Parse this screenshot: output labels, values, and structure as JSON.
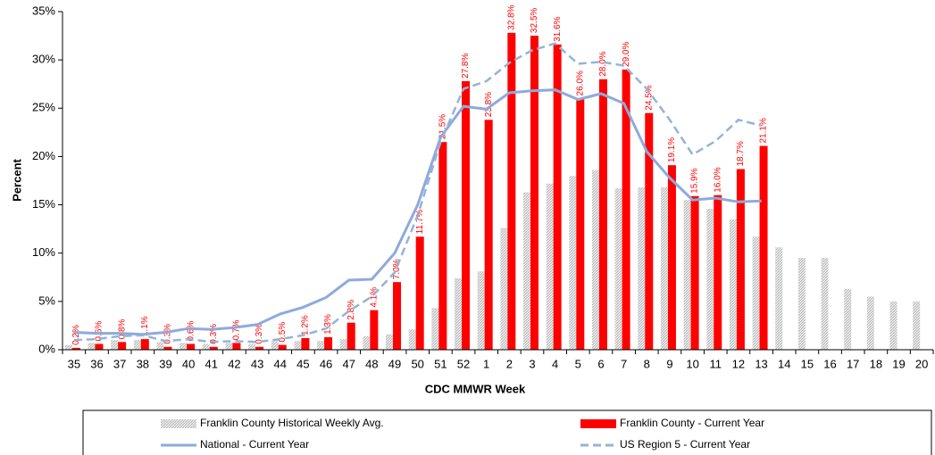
{
  "chart_data": {
    "type": "bar",
    "x_label": "CDC MMWR Week",
    "y_label": "Percent",
    "categories": [
      "35",
      "36",
      "37",
      "38",
      "39",
      "40",
      "41",
      "42",
      "43",
      "44",
      "45",
      "46",
      "47",
      "48",
      "49",
      "50",
      "51",
      "52",
      "1",
      "2",
      "3",
      "4",
      "5",
      "6",
      "7",
      "8",
      "9",
      "10",
      "11",
      "12",
      "13",
      "14",
      "15",
      "16",
      "17",
      "18",
      "19",
      "20"
    ],
    "ylim": [
      0,
      35
    ],
    "yticks": [
      {
        "value": 0,
        "label": "0%"
      },
      {
        "value": 5,
        "label": "5%"
      },
      {
        "value": 10,
        "label": "10%"
      },
      {
        "value": 15,
        "label": "15%"
      },
      {
        "value": 20,
        "label": "20%"
      },
      {
        "value": 25,
        "label": "25%"
      },
      {
        "value": 30,
        "label": "30%"
      },
      {
        "value": 35,
        "label": "35%"
      }
    ],
    "series": [
      {
        "name": "Franklin County Historical Weekly Avg.",
        "kind": "bar",
        "color": "#c8c8c8",
        "values": [
          0.5,
          0.7,
          1.0,
          1.0,
          0.8,
          0.7,
          0.6,
          0.7,
          0.6,
          0.9,
          0.9,
          0.9,
          1.1,
          1.4,
          1.6,
          2.1,
          4.3,
          7.4,
          8.1,
          12.6,
          16.3,
          17.2,
          18.0,
          18.6,
          16.7,
          16.8,
          16.8,
          15.5,
          14.6,
          13.5,
          11.7,
          10.6,
          9.5,
          9.5,
          6.3,
          5.5,
          5.0,
          5.0
        ]
      },
      {
        "name": "Franklin County - Current Year",
        "kind": "bar",
        "color": "#ff0000",
        "values": [
          0.2,
          0.6,
          0.8,
          1.1,
          0.3,
          0.6,
          0.3,
          0.7,
          0.3,
          0.5,
          1.2,
          1.3,
          2.8,
          4.1,
          7.0,
          11.7,
          21.5,
          27.8,
          23.8,
          32.8,
          32.5,
          31.6,
          26.0,
          28.0,
          29.0,
          24.5,
          19.1,
          15.9,
          16.0,
          18.7,
          21.1,
          null,
          null,
          null,
          null,
          null,
          null,
          null
        ],
        "value_labels": [
          "0.2%",
          "0.6%",
          "0.8%",
          "1.1%",
          "0.3%",
          "0.6%",
          "0.3%",
          "0.7%",
          "0.3%",
          "0.5%",
          "1.2%",
          "1.3%",
          "2.8%",
          "4.1%",
          "7.0%",
          "11.7%",
          "21.5%",
          "27.8%",
          "23.8%",
          "32.8%",
          "32.5%",
          "31.6%",
          "26.0%",
          "28.0%",
          "29.0%",
          "24.5%",
          "19.1%",
          "15.9%",
          "16.0%",
          "18.7%",
          "21.1%",
          null,
          null,
          null,
          null,
          null,
          null,
          null
        ]
      },
      {
        "name": "National - Current Year",
        "kind": "line",
        "color": "#8eaadb",
        "dash": false,
        "values": [
          1.8,
          1.7,
          1.7,
          1.6,
          1.8,
          2.2,
          2.1,
          2.3,
          2.6,
          3.7,
          4.4,
          5.4,
          7.2,
          7.3,
          10.0,
          15.0,
          22.0,
          25.2,
          24.9,
          26.6,
          26.8,
          26.9,
          25.9,
          26.5,
          25.5,
          20.5,
          17.8,
          15.5,
          15.7,
          15.3,
          15.4,
          null,
          null,
          null,
          null,
          null,
          null,
          null
        ]
      },
      {
        "name": "US Region 5 - Current Year",
        "kind": "line",
        "color": "#95b3d7",
        "dash": true,
        "values": [
          1.0,
          1.1,
          1.4,
          1.5,
          0.9,
          1.1,
          0.8,
          0.9,
          0.8,
          1.1,
          1.5,
          2.2,
          4.0,
          5.5,
          8.0,
          13.9,
          21.5,
          27.0,
          27.8,
          29.7,
          31.0,
          31.7,
          29.6,
          29.8,
          29.4,
          27.0,
          23.8,
          20.2,
          21.6,
          23.8,
          23.2,
          null,
          null,
          null,
          null,
          null,
          null,
          null
        ]
      }
    ]
  }
}
